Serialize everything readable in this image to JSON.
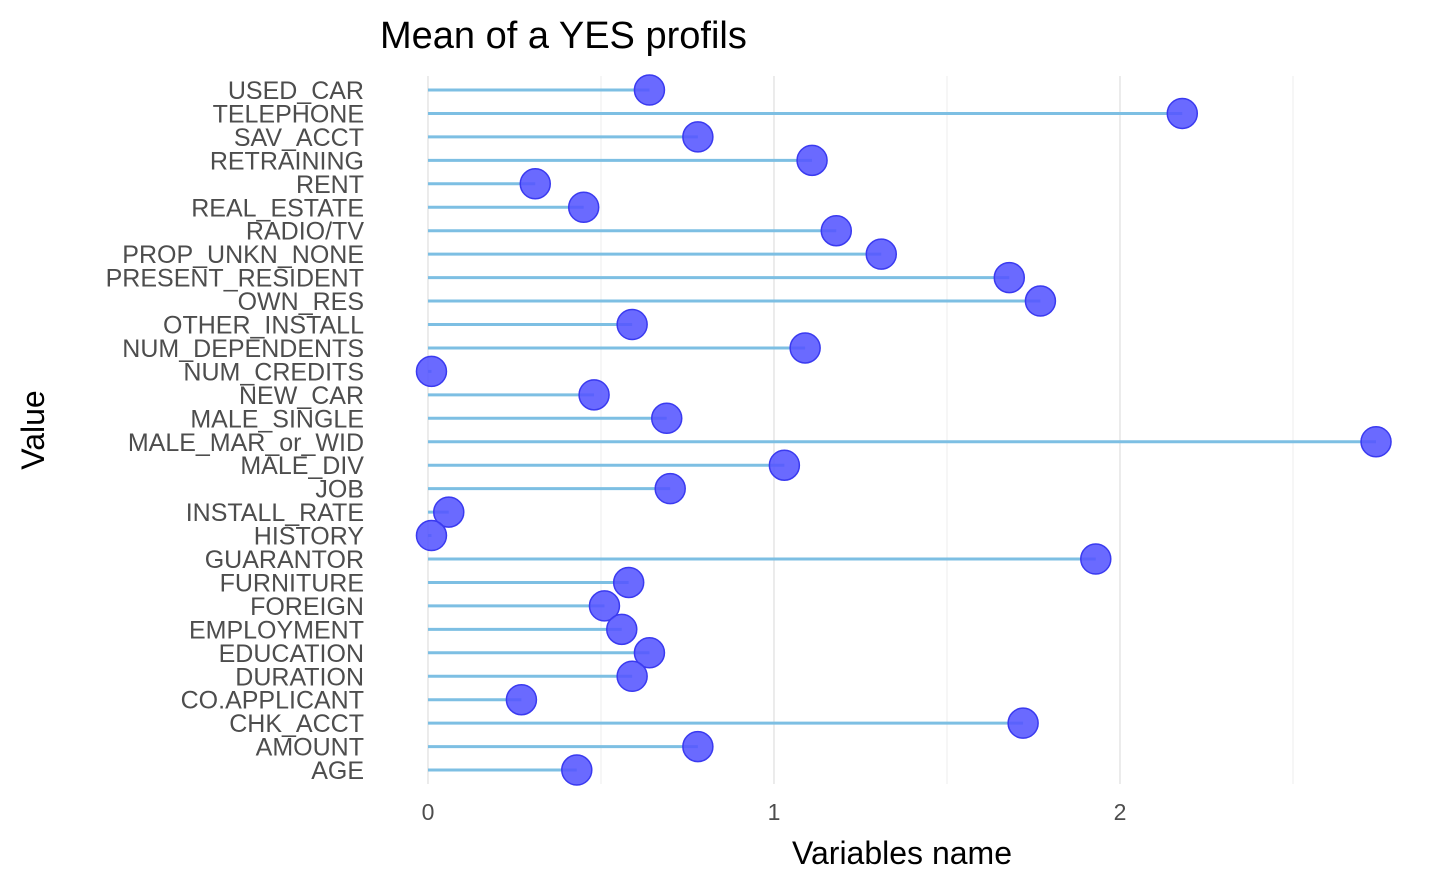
{
  "chart_data": {
    "type": "lollipop",
    "title": "Mean of a YES profils",
    "xlabel": "Variables name",
    "ylabel": "Value",
    "xlim": [
      0,
      2.75
    ],
    "x_ticks": [
      0,
      1,
      2
    ],
    "x_tick_labels": [
      "0",
      "1",
      "2"
    ],
    "grid": true,
    "stem_color": "#7dbfe3",
    "point_color": "#5555ff",
    "point_stroke": "#3a3af0",
    "categories": [
      "USED_CAR",
      "TELEPHONE",
      "SAV_ACCT",
      "RETRAINING",
      "RENT",
      "REAL_ESTATE",
      "RADIO/TV",
      "PROP_UNKN_NONE",
      "PRESENT_RESIDENT",
      "OWN_RES",
      "OTHER_INSTALL",
      "NUM_DEPENDENTS",
      "NUM_CREDITS",
      "NEW_CAR",
      "MALE_SINGLE",
      "MALE_MAR_or_WID",
      "MALE_DIV",
      "JOB",
      "INSTALL_RATE",
      "HISTORY",
      "GUARANTOR",
      "FURNITURE",
      "FOREIGN",
      "EMPLOYMENT",
      "EDUCATION",
      "DURATION",
      "CO.APPLICANT",
      "CHK_ACCT",
      "AMOUNT",
      "AGE"
    ],
    "values": [
      0.64,
      2.18,
      0.78,
      1.11,
      0.31,
      0.45,
      1.18,
      1.31,
      1.68,
      1.77,
      0.59,
      1.09,
      0.01,
      0.48,
      0.69,
      2.74,
      1.03,
      0.7,
      0.06,
      0.01,
      1.93,
      0.58,
      0.51,
      0.56,
      0.64,
      0.59,
      0.27,
      1.72,
      0.78,
      0.43
    ]
  }
}
